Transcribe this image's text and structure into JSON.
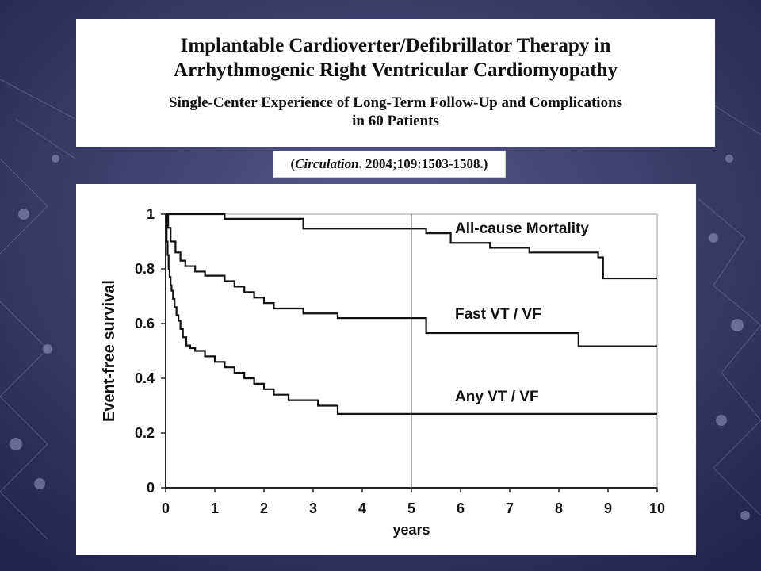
{
  "slide": {
    "title_line1": "Implantable Cardioverter/Defibrillator Therapy in",
    "title_line2": "Arrhythmogenic Right Ventricular Cardiomyopathy",
    "subtitle_line1": "Single-Center Experience of Long-Term Follow-Up and Complications",
    "subtitle_line2": "in 60 Patients",
    "citation_open": "(",
    "citation_journal": "Circulation",
    "citation_rest": ". 2004;109:1503-1508.)"
  },
  "colors": {
    "background": "#3a3a6a",
    "curve": "#111111",
    "panel": "#ffffff"
  },
  "chart_data": {
    "type": "line",
    "title": "",
    "xlabel": "years",
    "ylabel": "Event-free survival",
    "xlim": [
      0,
      10
    ],
    "ylim": [
      0,
      1
    ],
    "xticks": [
      "0",
      "1",
      "2",
      "3",
      "4",
      "5",
      "6",
      "7",
      "8",
      "9",
      "10"
    ],
    "yticks": [
      "0",
      "0.2",
      "0.4",
      "0.6",
      "0.8",
      "1"
    ],
    "grid": false,
    "reference_line_x": 5,
    "step": true,
    "series": [
      {
        "name": "All-cause Mortality",
        "x": [
          0,
          1.2,
          2.8,
          5.3,
          5.8,
          6.6,
          7.4,
          8.8,
          8.9,
          10
        ],
        "y": [
          1,
          0.983,
          0.947,
          0.93,
          0.895,
          0.877,
          0.86,
          0.842,
          0.765,
          0.765
        ]
      },
      {
        "name": "Fast VT / VF",
        "x": [
          0,
          0.05,
          0.1,
          0.2,
          0.3,
          0.4,
          0.6,
          0.8,
          1.2,
          1.4,
          1.6,
          1.8,
          2.0,
          2.2,
          2.8,
          3.5,
          5.3,
          8.4,
          10
        ],
        "y": [
          1,
          0.95,
          0.9,
          0.86,
          0.83,
          0.81,
          0.79,
          0.775,
          0.755,
          0.735,
          0.715,
          0.695,
          0.675,
          0.655,
          0.637,
          0.62,
          0.565,
          0.517,
          0.517
        ]
      },
      {
        "name": "Any VT / VF",
        "x": [
          0,
          0.02,
          0.04,
          0.06,
          0.08,
          0.1,
          0.12,
          0.15,
          0.18,
          0.22,
          0.26,
          0.3,
          0.35,
          0.42,
          0.5,
          0.6,
          0.8,
          1.0,
          1.2,
          1.4,
          1.6,
          1.8,
          2.0,
          2.2,
          2.5,
          3.1,
          3.5,
          10
        ],
        "y": [
          1,
          0.9,
          0.85,
          0.8,
          0.77,
          0.74,
          0.72,
          0.69,
          0.66,
          0.63,
          0.61,
          0.58,
          0.55,
          0.52,
          0.51,
          0.5,
          0.48,
          0.46,
          0.44,
          0.42,
          0.4,
          0.38,
          0.36,
          0.34,
          0.32,
          0.3,
          0.27,
          0.27
        ]
      }
    ],
    "annotations": [
      "All-cause Mortality",
      "Fast VT / VF",
      "Any VT / VF"
    ]
  }
}
